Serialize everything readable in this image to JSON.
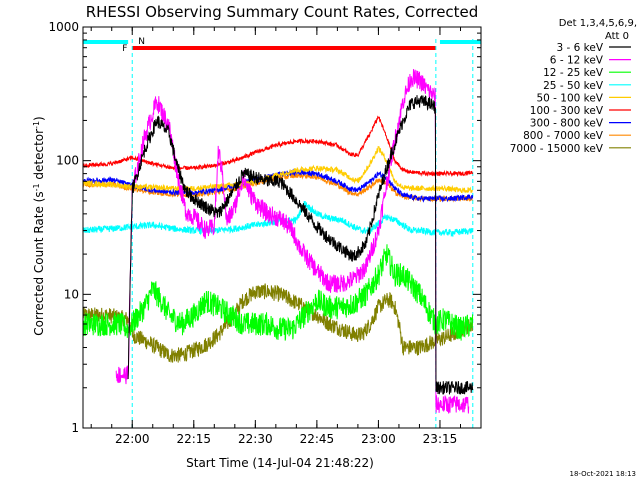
{
  "chart_data": {
    "type": "line",
    "title": "RHESSI Observing Summary Count Rates, Corrected",
    "xlabel": "Start Time (14-Jul-04 21:48:22)",
    "ylabel_main": "Corrected Count Rate (s",
    "ylabel_exp1": "-1",
    "ylabel_mid": " detector",
    "ylabel_exp2": "-1",
    "ylabel_end": ")",
    "yscale": "log",
    "ylim": [
      1,
      1000
    ],
    "xlim_min": [
      -12,
      85
    ],
    "y_ticks": [
      {
        "value": 1,
        "label": "1"
      },
      {
        "value": 10,
        "label": "10"
      },
      {
        "value": 100,
        "label": "100"
      },
      {
        "value": 1000,
        "label": "1000"
      }
    ],
    "x_ticks": [
      {
        "min": 0,
        "label": "22:00"
      },
      {
        "min": 15,
        "label": "22:15"
      },
      {
        "min": 30,
        "label": "22:30"
      },
      {
        "min": 45,
        "label": "22:45"
      },
      {
        "min": 60,
        "label": "23:00"
      },
      {
        "min": 75,
        "label": "23:15"
      }
    ],
    "legend_header": [
      "Det 1,3,4,5,6,9,",
      "Att 0"
    ],
    "legend_position": "right",
    "footer_date": "18-Oct-2021 18:13",
    "flag_labels": {
      "night": "N",
      "flare": "F"
    },
    "flags": {
      "night": [
        [
          -12,
          -1
        ],
        [
          75,
          85
        ]
      ],
      "flare": [
        0,
        74
      ],
      "night_boundaries": [
        0,
        74,
        83
      ]
    },
    "series": [
      {
        "name": "3 - 6 keV",
        "color": "#000000",
        "noise": 0.05,
        "x": [
          -1,
          0,
          3,
          6,
          9,
          11,
          13,
          15,
          18,
          21,
          24,
          27,
          30,
          33,
          36,
          39,
          42,
          45,
          48,
          51,
          54,
          57,
          60,
          63,
          66,
          68,
          70,
          72,
          73.9,
          74,
          75,
          78,
          80,
          83
        ],
        "y": [
          2.5,
          60,
          120,
          200,
          160,
          90,
          60,
          52,
          45,
          40,
          55,
          80,
          75,
          70,
          70,
          55,
          42,
          32,
          26,
          22,
          19,
          24,
          55,
          110,
          200,
          270,
          280,
          270,
          250,
          2,
          2,
          2,
          2,
          2
        ]
      },
      {
        "name": "6 - 12 keV",
        "color": "#ff00ff",
        "noise": 0.07,
        "x": [
          -4,
          -1,
          0,
          3,
          6,
          9,
          11,
          13,
          15,
          18,
          20,
          21,
          22,
          23,
          25,
          27,
          29,
          31,
          33,
          35,
          37,
          39,
          41,
          43,
          45,
          48,
          51,
          54,
          57,
          60,
          63,
          66,
          68,
          70,
          72,
          73.9,
          74,
          77,
          80,
          82
        ],
        "y": [
          2.5,
          2.5,
          60,
          150,
          280,
          180,
          80,
          42,
          38,
          30,
          32,
          120,
          80,
          35,
          45,
          75,
          55,
          45,
          40,
          38,
          35,
          30,
          22,
          18,
          15,
          12,
          12,
          13,
          16,
          30,
          100,
          280,
          420,
          400,
          340,
          300,
          1.5,
          1.5,
          1.5,
          1.5
        ]
      },
      {
        "name": "12 - 25 keV",
        "color": "#00ff00",
        "noise": 0.09,
        "x": [
          -12,
          -6,
          -3,
          -1,
          0,
          3,
          5,
          7,
          9,
          12,
          15,
          18,
          21,
          24,
          27,
          30,
          33,
          36,
          39,
          42,
          45,
          48,
          51,
          54,
          57,
          60,
          62,
          64,
          66,
          70,
          74,
          76,
          80,
          83
        ],
        "y": [
          6,
          6,
          6,
          5.5,
          6,
          8,
          11,
          9,
          7,
          6,
          7,
          9,
          8,
          7,
          6,
          6,
          6,
          5.5,
          5.5,
          7,
          9,
          8,
          8,
          8.5,
          10,
          14,
          20,
          14,
          14,
          10,
          6,
          6.5,
          5.5,
          6
        ]
      },
      {
        "name": "25 - 50 keV",
        "color": "#00ffff",
        "noise": 0.025,
        "x": [
          -12,
          -5,
          0,
          5,
          10,
          15,
          20,
          25,
          30,
          35,
          40,
          42,
          45,
          48,
          51,
          54,
          56,
          58,
          60,
          62,
          64,
          66,
          68,
          70,
          74,
          78,
          83
        ],
        "y": [
          30,
          31,
          32,
          33,
          31,
          30,
          30,
          31,
          33,
          35,
          36,
          48,
          40,
          37,
          36,
          32,
          30,
          30,
          34,
          38,
          36,
          33,
          30,
          30,
          29,
          29,
          30
        ]
      },
      {
        "name": "50 - 100 keV",
        "color": "#ffcc00",
        "noise": 0.02,
        "x": [
          -12,
          -5,
          0,
          5,
          10,
          15,
          20,
          25,
          30,
          35,
          40,
          45,
          50,
          53,
          55,
          58,
          60,
          62,
          64,
          66,
          68,
          72,
          76,
          80,
          83
        ],
        "y": [
          68,
          66,
          64,
          63,
          62,
          62,
          64,
          66,
          70,
          78,
          85,
          88,
          85,
          75,
          70,
          95,
          125,
          100,
          70,
          63,
          62,
          62,
          62,
          60,
          60
        ]
      },
      {
        "name": "100 - 300 keV",
        "color": "#ff0000",
        "noise": 0.015,
        "x": [
          -12,
          -5,
          0,
          5,
          10,
          15,
          20,
          25,
          30,
          35,
          40,
          45,
          50,
          53,
          55,
          58,
          60,
          62,
          64,
          66,
          68,
          72,
          76,
          80,
          83
        ],
        "y": [
          92,
          95,
          105,
          95,
          88,
          88,
          92,
          100,
          115,
          130,
          140,
          140,
          130,
          112,
          110,
          160,
          215,
          150,
          100,
          85,
          82,
          80,
          80,
          80,
          82
        ]
      },
      {
        "name": "300 - 800 keV",
        "color": "#0000ff",
        "noise": 0.02,
        "x": [
          -12,
          -5,
          0,
          5,
          10,
          15,
          20,
          25,
          30,
          35,
          40,
          45,
          50,
          53,
          55,
          58,
          60,
          62,
          64,
          66,
          70,
          74,
          78,
          83
        ],
        "y": [
          70,
          72,
          65,
          60,
          58,
          58,
          60,
          65,
          72,
          78,
          82,
          80,
          70,
          62,
          60,
          70,
          80,
          75,
          62,
          55,
          52,
          52,
          52,
          54
        ]
      },
      {
        "name": "800 - 7000 keV",
        "color": "#ff8800",
        "noise": 0.02,
        "x": [
          -12,
          -5,
          0,
          5,
          10,
          15,
          20,
          25,
          30,
          35,
          40,
          45,
          50,
          53,
          55,
          58,
          60,
          62,
          64,
          66,
          70,
          74,
          78,
          83
        ],
        "y": [
          66,
          66,
          62,
          58,
          56,
          56,
          58,
          62,
          68,
          74,
          78,
          76,
          66,
          58,
          56,
          64,
          72,
          68,
          58,
          54,
          52,
          52,
          52,
          52
        ]
      },
      {
        "name": "7000 - 15000 keV",
        "color": "#808000",
        "noise": 0.06,
        "x": [
          -12,
          -6,
          -1,
          0,
          3,
          6,
          9,
          12,
          15,
          18,
          21,
          24,
          27,
          30,
          33,
          36,
          39,
          42,
          45,
          48,
          51,
          54,
          56,
          58,
          60,
          62,
          63,
          64,
          65,
          66,
          70,
          74,
          78,
          83
        ],
        "y": [
          7,
          7,
          6.5,
          5,
          4.5,
          4,
          3.5,
          3.5,
          3.8,
          4.2,
          5,
          6.5,
          9,
          10.5,
          10.5,
          10,
          9,
          8,
          7,
          6,
          5.5,
          5,
          5,
          6,
          8,
          9,
          9,
          8,
          6,
          4,
          4,
          4.5,
          5,
          6
        ]
      }
    ]
  }
}
